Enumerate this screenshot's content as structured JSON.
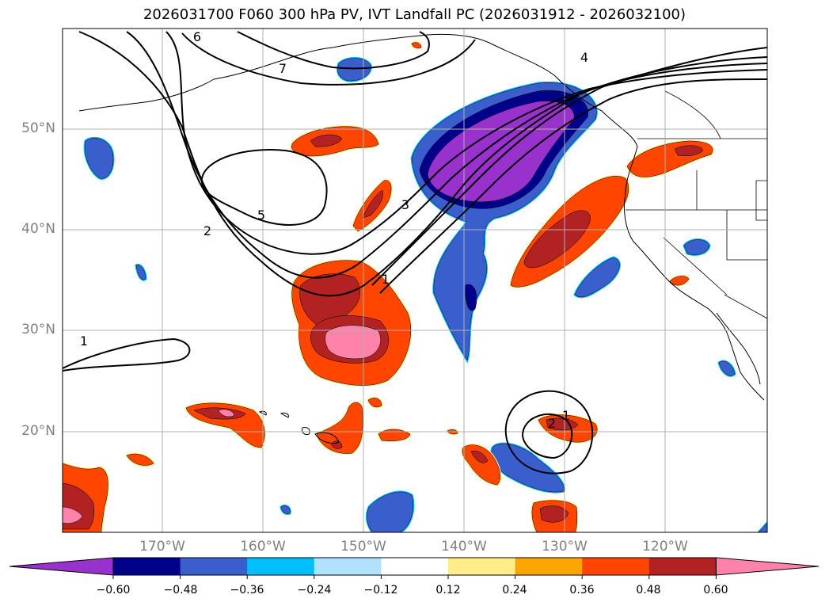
{
  "title": "2026031700 F060 300 hPa PV, IVT Landfall PC (2026031912 - 2026032100)",
  "x_ticks": [
    "170°W",
    "160°W",
    "150°W",
    "140°W",
    "130°W",
    "120°W"
  ],
  "y_ticks": [
    "50°N",
    "40°N",
    "30°N",
    "20°N"
  ],
  "pv_contour_labels": [
    "6",
    "7",
    "5",
    "4",
    "2",
    "3",
    "1",
    "1",
    "1",
    "2"
  ],
  "colorbar": {
    "labels": [
      "−0.60",
      "−0.48",
      "−0.36",
      "−0.24",
      "−0.12",
      "0.12",
      "0.24",
      "0.36",
      "0.48",
      "0.60"
    ],
    "colors": [
      "#9932cc",
      "#00008b",
      "#3a5fcd",
      "#00bfff",
      "#b0e2ff",
      "#ffffff",
      "#ffec8b",
      "#ffa500",
      "#ff4500",
      "#b22222",
      "#ff82ab"
    ]
  },
  "map": {
    "projection": "equirectangular",
    "lon_range": [
      -180,
      -110
    ],
    "lat_range": [
      10,
      60
    ],
    "grid": true,
    "fill_colors": {
      "purple": "#9932cc",
      "navy": "#00008b",
      "blue": "#3a5fcd",
      "sky": "#00bfff",
      "lightblue": "#b0e2ff",
      "yellow": "#ffec8b",
      "orange": "#ffa500",
      "red_orange": "#ff4500",
      "firebrick": "#b22222",
      "pink": "#ff82ab"
    }
  }
}
